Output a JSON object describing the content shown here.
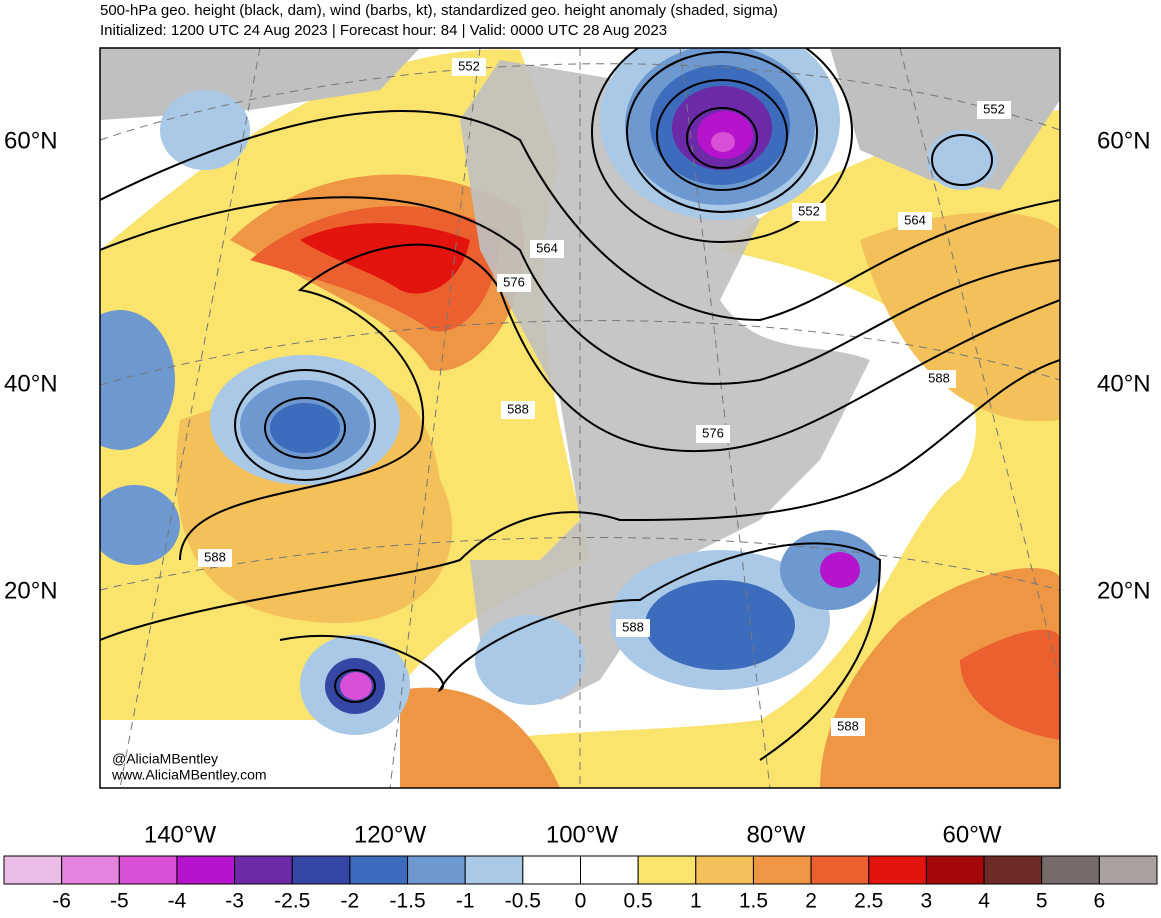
{
  "header": {
    "title": "500-hPa geo. height (black, dam), wind (barbs, kt), standardized geo. height anomaly (shaded, sigma)",
    "subtitle": "Initialized: 1200 UTC 24 Aug 2023 | Forecast hour: 84 | Valid: 0000 UTC 28 Aug 2023"
  },
  "map": {
    "lat_labels": [
      "60°N",
      "40°N",
      "20°N"
    ],
    "lon_labels": [
      "140°W",
      "120°W",
      "100°W",
      "80°W",
      "60°W"
    ],
    "contour_labels": [
      552,
      552,
      552,
      564,
      564,
      576,
      576,
      588,
      588,
      588,
      588,
      588
    ],
    "credits": [
      "@AliciaMBentley",
      "www.AliciaMBentley.com"
    ]
  },
  "colorbar": {
    "labels": [
      -6,
      -5,
      -4,
      -3,
      -2.5,
      -2,
      -1.5,
      -1,
      -0.5,
      0,
      0.5,
      1,
      1.5,
      2,
      2.5,
      3,
      4,
      5,
      6
    ],
    "colors": [
      "#ebbde6",
      "#e584e0",
      "#d94fd6",
      "#b514cc",
      "#6c2aa8",
      "#3546a5",
      "#3c6cbb",
      "#6d98d0",
      "#a9c9e6",
      "#ffffff",
      "#ffffff",
      "#fae46e",
      "#f3c05a",
      "#ef9644",
      "#ec5f2f",
      "#e3140e",
      "#a5080a",
      "#6e2a27",
      "#766b6a",
      "#a9a0a0"
    ]
  }
}
